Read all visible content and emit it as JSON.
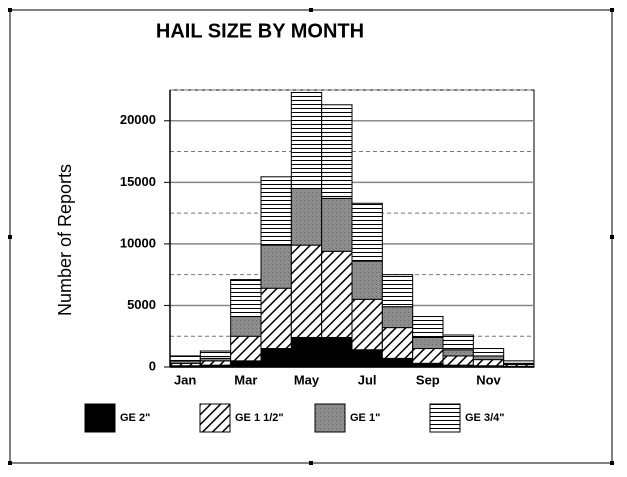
{
  "chart_data": {
    "type": "stacked_bar",
    "title": "HAIL SIZE BY MONTH",
    "y_label": "Number of Reports",
    "categories": [
      "Jan",
      null,
      "Mar",
      null,
      "May",
      null,
      "Jul",
      null,
      "Sep",
      null,
      "Nov",
      null
    ],
    "series": [
      {
        "name": "GE 2\"",
        "color": "#000000",
        "pattern": "solid",
        "values": [
          100,
          150,
          500,
          1500,
          2400,
          2400,
          1400,
          700,
          300,
          150,
          100,
          50
        ]
      },
      {
        "name": "GE 1 1/2\"",
        "color": "#000000",
        "pattern": "diagonal",
        "values": [
          200,
          350,
          2000,
          4900,
          7500,
          7000,
          4100,
          2500,
          1200,
          750,
          500,
          150
        ]
      },
      {
        "name": "GE 1\"",
        "color": "#8c8c8c",
        "pattern": "dots",
        "values": [
          200,
          200,
          1600,
          3500,
          4600,
          4300,
          3100,
          1700,
          900,
          500,
          300,
          100
        ]
      },
      {
        "name": "GE 3/4\"",
        "color": "#000000",
        "pattern": "horizontal",
        "values": [
          400,
          600,
          3000,
          5550,
          7800,
          7600,
          4700,
          2600,
          1700,
          1200,
          600,
          200
        ]
      }
    ],
    "ylim": [
      0,
      22500
    ],
    "yticks": [
      0,
      5000,
      10000,
      15000,
      20000
    ],
    "minor_yticks": [
      2500,
      7500,
      12500,
      17500,
      22500
    ],
    "grid": true
  }
}
